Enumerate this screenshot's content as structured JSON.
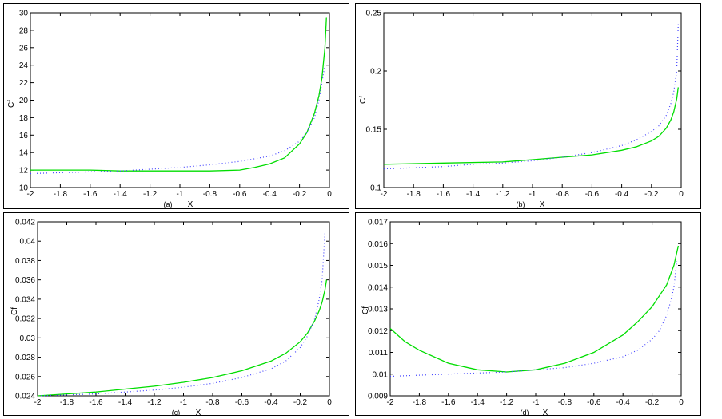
{
  "chart_data": [
    {
      "type": "line",
      "label": "(a)",
      "xlabel": "X",
      "ylabel": "Cf",
      "xlim": [
        -2,
        0
      ],
      "ylim": [
        10,
        30
      ],
      "xticks": [
        -2,
        -1.8,
        -1.6,
        -1.4,
        -1.2,
        -1,
        -0.8,
        -0.6,
        -0.4,
        -0.2,
        0
      ],
      "yticks": [
        10,
        12,
        14,
        16,
        18,
        20,
        22,
        24,
        26,
        28,
        30
      ],
      "xtick_labels": [
        "-2",
        "-1.8",
        "-1.6",
        "-1.4",
        "-1.2",
        "-1",
        "-0.8",
        "-0.6",
        "-0.4",
        "-0.2",
        "0"
      ],
      "ytick_labels": [
        "10",
        "12",
        "14",
        "16",
        "18",
        "20",
        "22",
        "24",
        "26",
        "28",
        "30"
      ],
      "series": [
        {
          "style": "solid",
          "color": "#00dd00",
          "x": [
            -2,
            -1.6,
            -1.4,
            -1.2,
            -1.0,
            -0.8,
            -0.6,
            -0.5,
            -0.4,
            -0.3,
            -0.2,
            -0.15,
            -0.1,
            -0.07,
            -0.05,
            -0.03,
            -0.02
          ],
          "y": [
            12.0,
            12.0,
            11.9,
            11.9,
            11.9,
            11.9,
            12.0,
            12.3,
            12.7,
            13.4,
            15.0,
            16.3,
            18.5,
            20.5,
            22.5,
            26.0,
            29.5
          ]
        },
        {
          "style": "dotted",
          "color": "#4444ff",
          "x": [
            -2,
            -1.8,
            -1.6,
            -1.4,
            -1.2,
            -1.0,
            -0.8,
            -0.6,
            -0.4,
            -0.3,
            -0.2,
            -0.15,
            -0.1,
            -0.07,
            -0.05,
            -0.03
          ],
          "y": [
            11.6,
            11.7,
            11.8,
            11.9,
            12.1,
            12.3,
            12.6,
            13.0,
            13.6,
            14.2,
            15.3,
            16.3,
            18.0,
            20.0,
            22.0,
            24.0
          ]
        }
      ]
    },
    {
      "type": "line",
      "label": "(b)",
      "xlabel": "X",
      "ylabel": "Cf",
      "xlim": [
        -2,
        0
      ],
      "ylim": [
        0.1,
        0.25
      ],
      "xticks": [
        -2,
        -1.8,
        -1.6,
        -1.4,
        -1.2,
        -1,
        -0.8,
        -0.6,
        -0.4,
        -0.2,
        0
      ],
      "yticks": [
        0.1,
        0.15,
        0.2,
        0.25
      ],
      "xtick_labels": [
        "-2",
        "-1.8",
        "-1.6",
        "-1.4",
        "-1.2",
        "-1",
        "-0.8",
        "-0.6",
        "-0.4",
        "-0.2",
        "0"
      ],
      "ytick_labels": [
        "0.1",
        "0.15",
        "0.2",
        "0.25"
      ],
      "series": [
        {
          "style": "solid",
          "color": "#00dd00",
          "x": [
            -2,
            -1.6,
            -1.2,
            -1.0,
            -0.8,
            -0.6,
            -0.4,
            -0.3,
            -0.2,
            -0.15,
            -0.1,
            -0.07,
            -0.05,
            -0.03,
            -0.02
          ],
          "y": [
            0.12,
            0.121,
            0.122,
            0.124,
            0.126,
            0.128,
            0.132,
            0.135,
            0.14,
            0.144,
            0.151,
            0.158,
            0.165,
            0.176,
            0.186
          ]
        },
        {
          "style": "dotted",
          "color": "#4444ff",
          "x": [
            -2,
            -1.8,
            -1.6,
            -1.4,
            -1.2,
            -1.0,
            -0.8,
            -0.6,
            -0.4,
            -0.3,
            -0.2,
            -0.15,
            -0.1,
            -0.07,
            -0.05,
            -0.03,
            -0.02
          ],
          "y": [
            0.116,
            0.117,
            0.118,
            0.12,
            0.121,
            0.123,
            0.126,
            0.13,
            0.136,
            0.141,
            0.148,
            0.153,
            0.162,
            0.172,
            0.182,
            0.2,
            0.24
          ]
        }
      ]
    },
    {
      "type": "line",
      "label": "(c)",
      "xlabel": "X",
      "ylabel": "Cf",
      "xlim": [
        -2,
        0
      ],
      "ylim": [
        0.024,
        0.042
      ],
      "xticks": [
        -2,
        -1.8,
        -1.6,
        -1.4,
        -1.2,
        -1,
        -0.8,
        -0.6,
        -0.4,
        -0.2,
        0
      ],
      "yticks": [
        0.024,
        0.026,
        0.028,
        0.03,
        0.032,
        0.034,
        0.036,
        0.038,
        0.04,
        0.042
      ],
      "xtick_labels": [
        "-2",
        "-1.8",
        "-1.6",
        "-1.4",
        "-1.2",
        "-1",
        "-0.8",
        "-0.6",
        "-0.4",
        "-0.2",
        "0"
      ],
      "ytick_labels": [
        "0.024",
        "0.026",
        "0.028",
        "0.03",
        "0.032",
        "0.034",
        "0.036",
        "0.038",
        "0.04",
        "0.042"
      ],
      "series": [
        {
          "style": "solid",
          "color": "#00dd00",
          "x": [
            -2,
            -1.8,
            -1.6,
            -1.4,
            -1.2,
            -1.0,
            -0.8,
            -0.6,
            -0.4,
            -0.3,
            -0.2,
            -0.15,
            -0.1,
            -0.07,
            -0.05,
            -0.03,
            -0.02
          ],
          "y": [
            0.024,
            0.0242,
            0.0244,
            0.0247,
            0.025,
            0.0254,
            0.0259,
            0.0266,
            0.0276,
            0.0284,
            0.0296,
            0.0305,
            0.0318,
            0.0328,
            0.0337,
            0.035,
            0.036
          ]
        },
        {
          "style": "dotted",
          "color": "#4444ff",
          "x": [
            -2,
            -1.6,
            -1.4,
            -1.2,
            -1.0,
            -0.8,
            -0.6,
            -0.4,
            -0.3,
            -0.2,
            -0.15,
            -0.1,
            -0.07,
            -0.05,
            -0.03
          ],
          "y": [
            0.024,
            0.0242,
            0.0244,
            0.0246,
            0.0249,
            0.0253,
            0.0259,
            0.0268,
            0.0276,
            0.029,
            0.0302,
            0.032,
            0.034,
            0.036,
            0.041
          ]
        }
      ]
    },
    {
      "type": "line",
      "label": "(d)",
      "xlabel": "X",
      "ylabel": "Cf",
      "xlim": [
        -2,
        0
      ],
      "ylim": [
        0.009,
        0.017
      ],
      "xticks": [
        -2,
        -1.8,
        -1.6,
        -1.4,
        -1.2,
        -1,
        -0.8,
        -0.6,
        -0.4,
        -0.2,
        0
      ],
      "yticks": [
        0.009,
        0.01,
        0.011,
        0.012,
        0.013,
        0.014,
        0.015,
        0.016,
        0.017
      ],
      "xtick_labels": [
        "-2",
        "-1.8",
        "-1.6",
        "-1.4",
        "-1.2",
        "-1",
        "-0.8",
        "-0.6",
        "-0.4",
        "-0.2",
        "0"
      ],
      "ytick_labels": [
        "0.009",
        "0.01",
        "0.011",
        "0.012",
        "0.013",
        "0.014",
        "0.015",
        "0.016",
        "0.017"
      ],
      "series": [
        {
          "style": "solid",
          "color": "#00dd00",
          "x": [
            -2,
            -1.9,
            -1.8,
            -1.6,
            -1.4,
            -1.2,
            -1.0,
            -0.8,
            -0.6,
            -0.4,
            -0.3,
            -0.2,
            -0.1,
            -0.05,
            -0.02
          ],
          "y": [
            0.0121,
            0.0115,
            0.0111,
            0.0105,
            0.0102,
            0.0101,
            0.0102,
            0.0105,
            0.011,
            0.0118,
            0.0124,
            0.0131,
            0.0141,
            0.015,
            0.0159
          ]
        },
        {
          "style": "dotted",
          "color": "#4444ff",
          "x": [
            -2,
            -1.6,
            -1.2,
            -1.0,
            -0.8,
            -0.6,
            -0.4,
            -0.3,
            -0.2,
            -0.15,
            -0.1,
            -0.07,
            -0.05,
            -0.03
          ],
          "y": [
            0.0099,
            0.01,
            0.0101,
            0.0102,
            0.0103,
            0.0105,
            0.0108,
            0.0111,
            0.0116,
            0.012,
            0.0127,
            0.0134,
            0.014,
            0.0152
          ]
        }
      ]
    }
  ]
}
